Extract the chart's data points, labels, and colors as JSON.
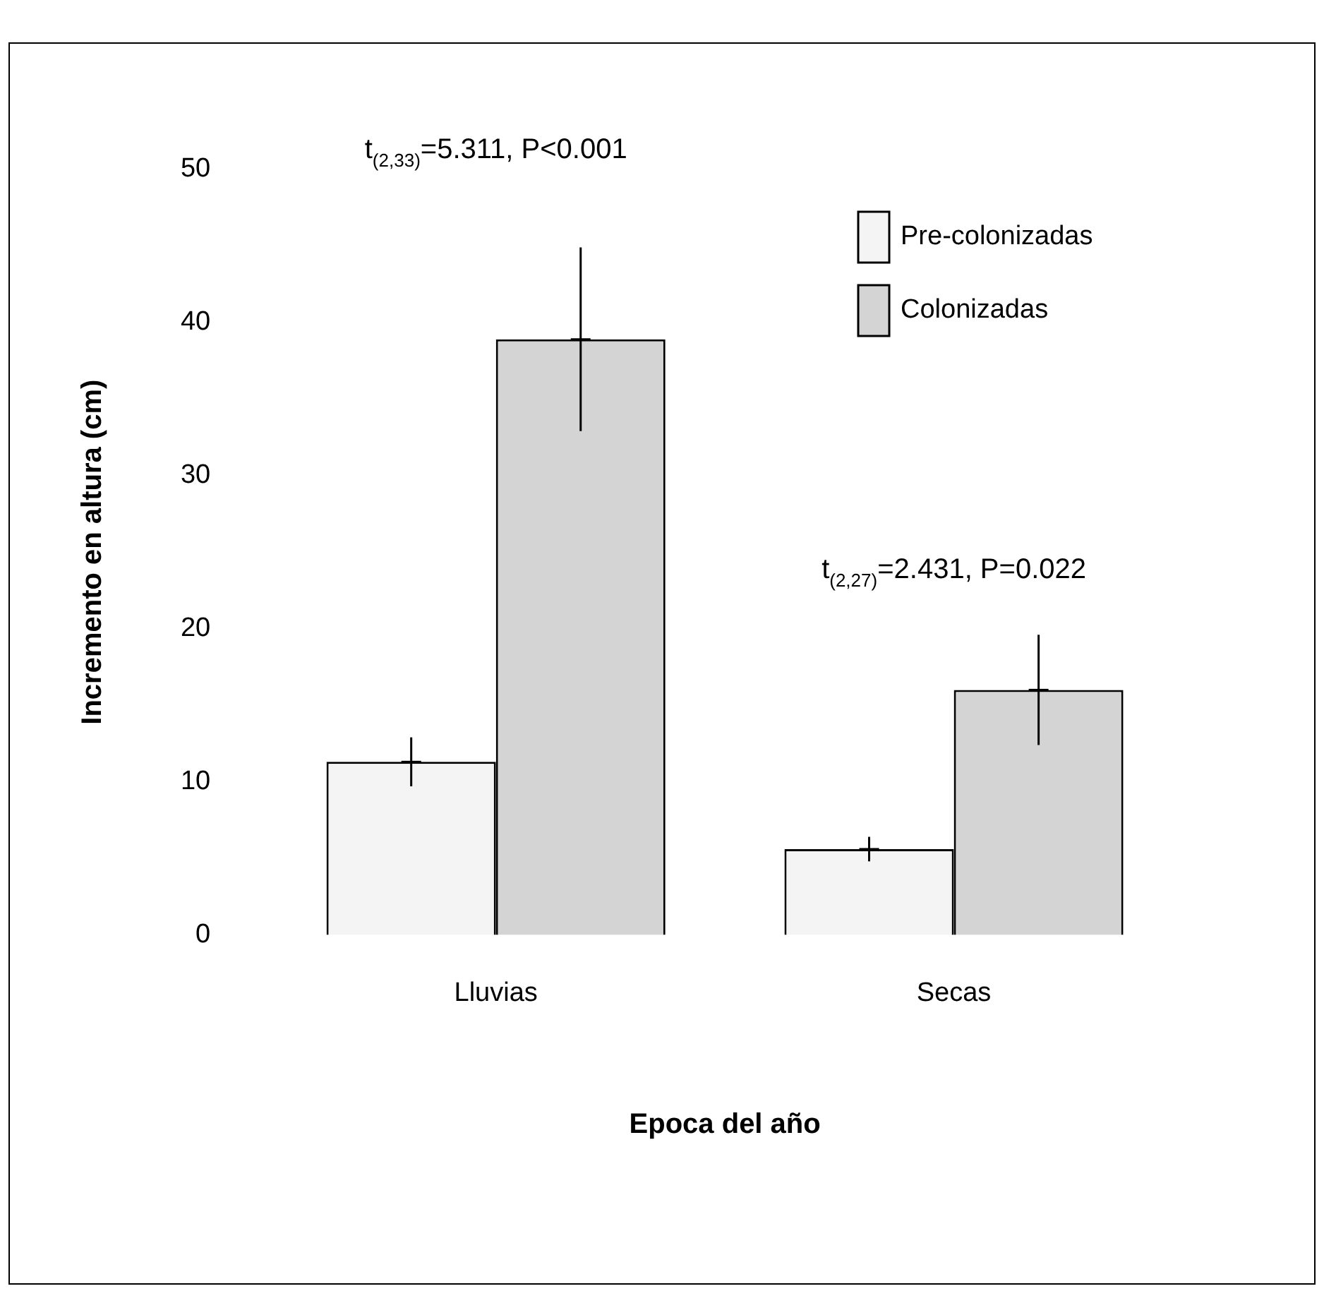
{
  "chart_data": {
    "type": "bar",
    "xlabel": "Epoca del año",
    "ylabel": "Incremento en altura (cm)",
    "categories": [
      "Lluvias",
      "Secas"
    ],
    "series": [
      {
        "name": "Pre-colonizadas",
        "color": "#f4f4f4",
        "values": [
          11.3,
          5.6
        ],
        "errors": [
          1.6,
          0.8
        ]
      },
      {
        "name": "Colonizadas",
        "color": "#d4d4d4",
        "values": [
          38.9,
          16.0
        ],
        "errors": [
          6.0,
          3.6
        ]
      }
    ],
    "ylim": [
      0,
      50
    ],
    "yticks": [
      0,
      10,
      20,
      30,
      40,
      50
    ],
    "grid": false,
    "legend": "top right",
    "annotations": [
      "t$_{(2,33)}$=5.311, P<0.001",
      "t$_{(2,27)}$=2.431, P=0.022"
    ]
  }
}
